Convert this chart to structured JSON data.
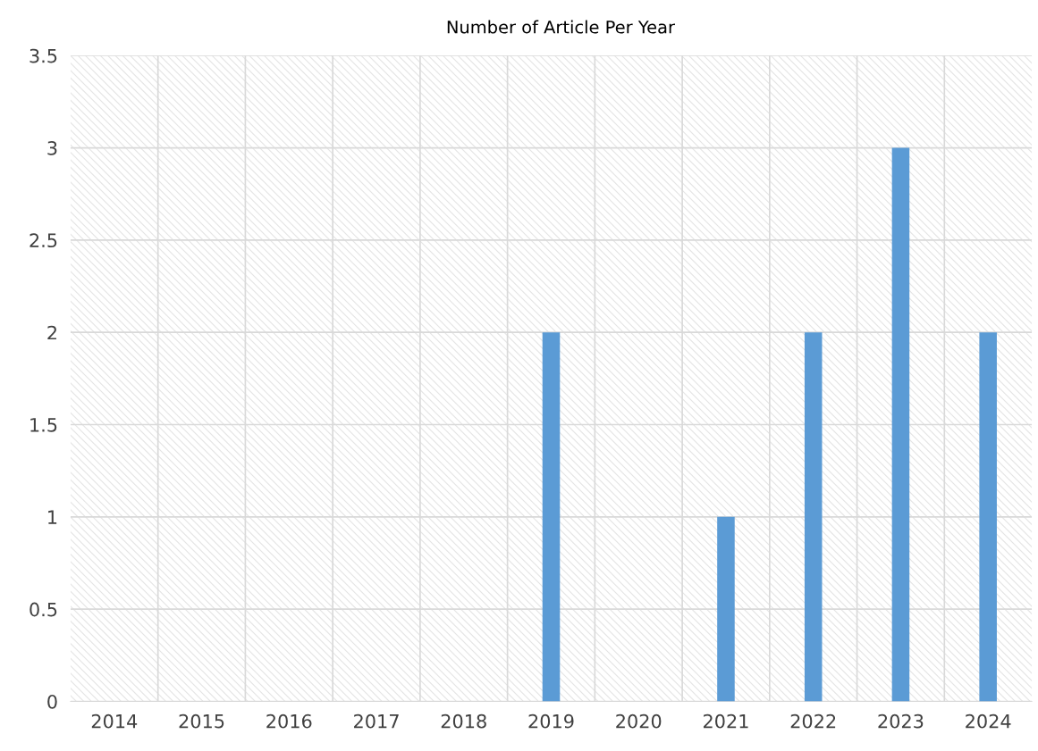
{
  "chart_data": {
    "type": "bar",
    "title": "Number of Article Per Year",
    "categories": [
      "2014",
      "2015",
      "2016",
      "2017",
      "2018",
      "2019",
      "2020",
      "2021",
      "2022",
      "2023",
      "2024"
    ],
    "values": [
      0,
      0,
      0,
      0,
      0,
      2,
      0,
      1,
      2,
      3,
      2
    ],
    "color": "#5b9bd5",
    "ylim": [
      0,
      3.5
    ],
    "yticks": [
      0,
      0.5,
      1,
      1.5,
      2,
      2.5,
      3,
      3.5
    ],
    "grid": true,
    "legend": false
  }
}
